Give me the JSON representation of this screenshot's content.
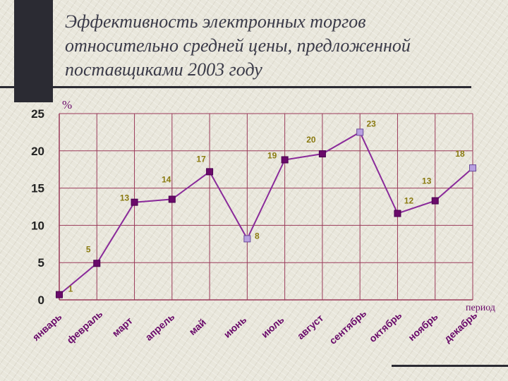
{
  "slide": {
    "title": "Эффективность электронных торгов относительно средней цены, предложенной поставщиками 2003 году"
  },
  "colors": {
    "line": "#8a2a9a",
    "marker": "#6a0a6a",
    "marker_highlight": "#b8a0e0",
    "gridline": "#9a3a5a",
    "data_label": "#8a7a10",
    "tick_label": "#6a0a6a"
  },
  "chart_data": {
    "type": "line",
    "title": "",
    "ylabel": "%",
    "xlabel": "период",
    "ylim": [
      0,
      25
    ],
    "yticks": [
      0,
      5,
      10,
      15,
      20,
      25
    ],
    "grid": true,
    "categories": [
      "январь",
      "февраль",
      "март",
      "апрель",
      "май",
      "июнь",
      "июль",
      "август",
      "сентябрь",
      "октябрь",
      "ноябрь",
      "декабрь"
    ],
    "series": [
      {
        "values": [
          0.7,
          4.9,
          13.1,
          13.5,
          17.2,
          8.2,
          18.8,
          19.6,
          22.5,
          11.6,
          13.3,
          17.7
        ],
        "data_labels": [
          "1",
          "5",
          "13",
          "14",
          "17",
          "8",
          "19",
          "20",
          "23",
          "12",
          "13",
          "18"
        ],
        "highlighted_points": [
          5,
          8,
          11
        ]
      }
    ]
  }
}
